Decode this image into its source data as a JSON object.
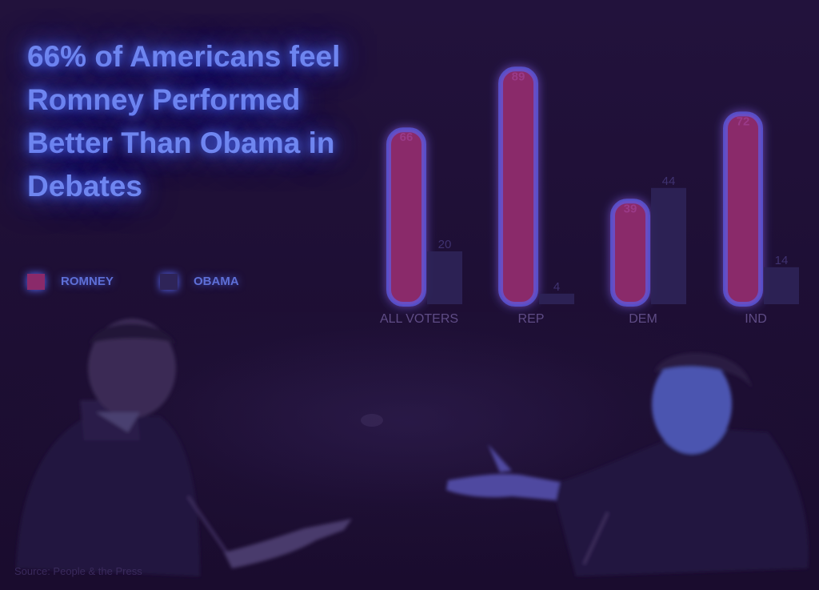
{
  "headline": "66% of Americans feel Romney Performed Better Than Obama in Debates",
  "source": "Source: People & the Press",
  "colors": {
    "romney": "#8a2a6a",
    "obama": "#2e2458",
    "glow": "#5a6cff",
    "headline": "#6f86f0",
    "axis_label": "#5f4c86",
    "background": "#1e0f36"
  },
  "legend": [
    {
      "label": "ROMNEY",
      "color": "#8a2a6a"
    },
    {
      "label": "OBAMA",
      "color": "#2e2458"
    }
  ],
  "chart_data": {
    "type": "bar",
    "title": "66% of Americans feel Romney Performed Better Than Obama in Debates",
    "categories": [
      "ALL VOTERS",
      "REP",
      "DEM",
      "IND"
    ],
    "series": [
      {
        "name": "ROMNEY",
        "values": [
          66,
          89,
          39,
          72
        ]
      },
      {
        "name": "OBAMA",
        "values": [
          20,
          4,
          44,
          14
        ]
      }
    ],
    "value_labels": [
      [
        "66",
        "20"
      ],
      [
        "89",
        "4"
      ],
      [
        "39",
        "44"
      ],
      [
        "72",
        "14"
      ]
    ],
    "xlabel": "",
    "ylabel": "",
    "ylim": [
      0,
      100
    ],
    "grid": false,
    "legend_position": "left"
  }
}
